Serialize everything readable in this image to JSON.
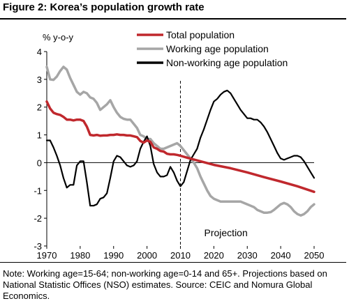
{
  "figure": {
    "title": "Figure 2: Korea’s population growth rate",
    "note": "Note: Working age=15-64; non-working age=0-14 and 65+. Projections based on National Statistic Offices (NSO) estimates. Source: CEIC and Nomura Global Economics."
  },
  "chart_data": {
    "type": "line",
    "title": "",
    "ylabel": "% y-o-y",
    "xlabel": "",
    "xlim": [
      1970,
      2050
    ],
    "ylim": [
      -3,
      4
    ],
    "xticks": [
      "1970",
      "1980",
      "1990",
      "2000",
      "2010",
      "2020",
      "2030",
      "2040",
      "2050"
    ],
    "yticks": [
      "-3",
      "-2",
      "-1",
      "0",
      "1",
      "2",
      "3",
      "4"
    ],
    "grid": false,
    "legend": "top-right",
    "annotation": "Projection",
    "projection_start": 2010,
    "series": [
      {
        "name": "Total population",
        "color": "#c0282d",
        "x": [
          1970,
          1971,
          1972,
          1973,
          1974,
          1975,
          1976,
          1977,
          1978,
          1979,
          1980,
          1981,
          1982,
          1983,
          1984,
          1985,
          1986,
          1987,
          1988,
          1989,
          1990,
          1991,
          1992,
          1993,
          1994,
          1995,
          1996,
          1997,
          1998,
          1999,
          2000,
          2001,
          2002,
          2003,
          2004,
          2005,
          2006,
          2007,
          2008,
          2009,
          2010,
          2012,
          2015,
          2020,
          2025,
          2030,
          2035,
          2040,
          2045,
          2050
        ],
        "y": [
          2.2,
          1.95,
          1.8,
          1.75,
          1.72,
          1.65,
          1.55,
          1.55,
          1.52,
          1.55,
          1.55,
          1.5,
          1.3,
          1.0,
          0.98,
          1.0,
          0.97,
          0.98,
          0.98,
          1.0,
          1.0,
          1.02,
          1.0,
          1.0,
          0.98,
          0.98,
          0.95,
          0.92,
          0.78,
          0.72,
          0.8,
          0.75,
          0.55,
          0.5,
          0.42,
          0.4,
          0.32,
          0.3,
          0.3,
          0.28,
          0.25,
          0.18,
          0.08,
          -0.08,
          -0.2,
          -0.35,
          -0.52,
          -0.68,
          -0.85,
          -1.05
        ]
      },
      {
        "name": "Working age population",
        "color": "#a6a6a6",
        "x": [
          1970,
          1971,
          1972,
          1973,
          1974,
          1975,
          1976,
          1977,
          1978,
          1979,
          1980,
          1981,
          1982,
          1983,
          1984,
          1985,
          1986,
          1987,
          1988,
          1989,
          1990,
          1991,
          1992,
          1993,
          1994,
          1995,
          1996,
          1997,
          1998,
          1999,
          2000,
          2001,
          2002,
          2003,
          2004,
          2005,
          2006,
          2007,
          2008,
          2009,
          2010,
          2011,
          2012,
          2013,
          2014,
          2015,
          2016,
          2017,
          2018,
          2019,
          2020,
          2021,
          2022,
          2023,
          2024,
          2025,
          2026,
          2027,
          2028,
          2029,
          2030,
          2031,
          2032,
          2033,
          2034,
          2035,
          2036,
          2037,
          2038,
          2039,
          2040,
          2041,
          2042,
          2043,
          2044,
          2045,
          2046,
          2047,
          2048,
          2049,
          2050
        ],
        "y": [
          3.45,
          3.0,
          2.98,
          3.1,
          3.3,
          3.45,
          3.35,
          3.05,
          2.8,
          2.55,
          2.45,
          2.55,
          2.5,
          2.35,
          2.3,
          2.15,
          1.9,
          2.0,
          2.1,
          2.25,
          2.0,
          1.8,
          1.65,
          1.58,
          1.55,
          1.55,
          1.4,
          1.25,
          1.0,
          0.95,
          0.85,
          0.85,
          0.7,
          0.6,
          0.5,
          0.5,
          0.55,
          0.6,
          0.65,
          0.7,
          0.6,
          0.45,
          0.3,
          0.15,
          0.0,
          -0.2,
          -0.5,
          -0.75,
          -1.0,
          -1.2,
          -1.3,
          -1.35,
          -1.4,
          -1.4,
          -1.4,
          -1.4,
          -1.4,
          -1.4,
          -1.4,
          -1.45,
          -1.5,
          -1.55,
          -1.6,
          -1.7,
          -1.75,
          -1.8,
          -1.8,
          -1.78,
          -1.7,
          -1.6,
          -1.5,
          -1.45,
          -1.5,
          -1.6,
          -1.75,
          -1.85,
          -1.9,
          -1.85,
          -1.75,
          -1.6,
          -1.5
        ]
      },
      {
        "name": "Non-working age population",
        "color": "#000000",
        "x": [
          1970,
          1971,
          1972,
          1973,
          1974,
          1975,
          1976,
          1977,
          1978,
          1979,
          1980,
          1981,
          1982,
          1983,
          1984,
          1985,
          1986,
          1987,
          1988,
          1989,
          1990,
          1991,
          1992,
          1993,
          1994,
          1995,
          1996,
          1997,
          1998,
          1999,
          2000,
          2001,
          2002,
          2003,
          2004,
          2005,
          2006,
          2007,
          2008,
          2009,
          2010,
          2011,
          2012,
          2013,
          2014,
          2015,
          2016,
          2017,
          2018,
          2019,
          2020,
          2021,
          2022,
          2023,
          2024,
          2025,
          2026,
          2027,
          2028,
          2029,
          2030,
          2031,
          2032,
          2033,
          2034,
          2035,
          2036,
          2037,
          2038,
          2039,
          2040,
          2041,
          2042,
          2043,
          2044,
          2045,
          2046,
          2047,
          2048,
          2049,
          2050
        ],
        "y": [
          0.8,
          0.8,
          0.55,
          0.25,
          -0.1,
          -0.55,
          -0.9,
          -0.8,
          -0.8,
          -0.1,
          0.05,
          0.05,
          -0.7,
          -1.55,
          -1.55,
          -1.5,
          -1.3,
          -1.25,
          -1.1,
          -0.55,
          0.05,
          0.25,
          0.2,
          0.05,
          -0.1,
          -0.15,
          -0.1,
          0.05,
          0.5,
          0.75,
          0.95,
          0.6,
          -0.05,
          -0.35,
          -0.5,
          -0.5,
          -0.45,
          -0.15,
          -0.35,
          -0.65,
          -0.85,
          -0.7,
          -0.3,
          0.1,
          0.3,
          0.5,
          0.9,
          1.2,
          1.55,
          1.9,
          2.2,
          2.3,
          2.45,
          2.55,
          2.6,
          2.5,
          2.3,
          2.1,
          1.9,
          1.75,
          1.6,
          1.6,
          1.55,
          1.55,
          1.45,
          1.3,
          1.1,
          0.85,
          0.6,
          0.35,
          0.15,
          0.1,
          0.15,
          0.2,
          0.25,
          0.25,
          0.2,
          0.05,
          -0.15,
          -0.35,
          -0.55
        ]
      }
    ]
  }
}
